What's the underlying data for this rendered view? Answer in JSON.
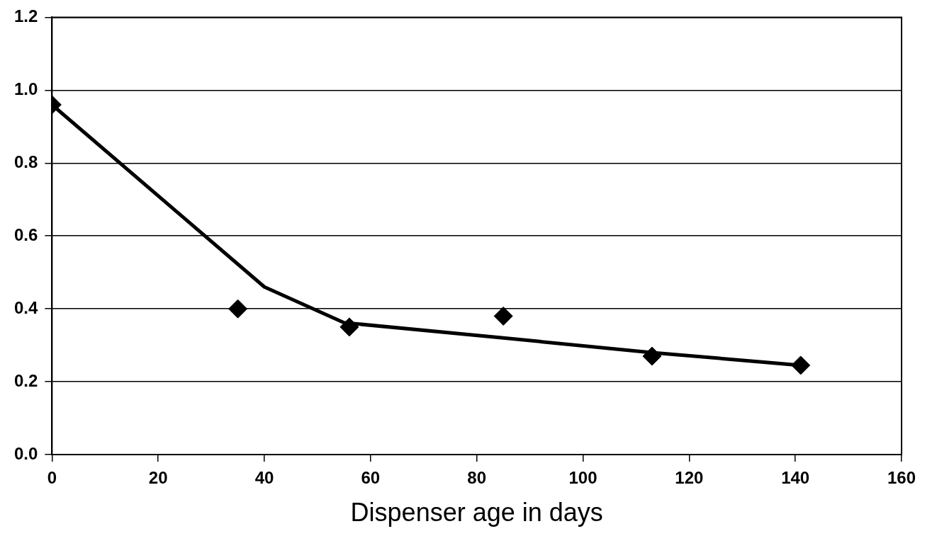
{
  "chart_data": {
    "type": "scatter",
    "xlabel": "Dispenser age in days",
    "xlim": [
      0,
      160
    ],
    "xticks": [
      0,
      20,
      40,
      60,
      80,
      100,
      120,
      140,
      160
    ],
    "ylim": [
      0,
      1.2
    ],
    "yticks": [
      {
        "value": 0,
        "label": "0.0"
      },
      {
        "value": 0.2,
        "label": "0.2"
      },
      {
        "value": 0.4,
        "label": "0.4"
      },
      {
        "value": 0.6,
        "label": "0.6"
      },
      {
        "value": 0.8,
        "label": "0.8"
      },
      {
        "value": 1,
        "label": "1.0"
      },
      {
        "value": 1.2,
        "label": "1.2"
      }
    ],
    "grid": "y",
    "legend": false,
    "marker": "diamond",
    "series": [
      {
        "color": "#000000",
        "x": [
          0,
          35,
          56,
          85,
          113,
          141
        ],
        "values": [
          0.96,
          0.4,
          0.35,
          0.38,
          0.27,
          0.245
        ]
      },
      {
        "type": "line",
        "color": "#000000",
        "marker": "none",
        "x": [
          0,
          40,
          55,
          85,
          113,
          141
        ],
        "values": [
          0.96,
          0.46,
          0.362,
          0.32,
          0.28,
          0.245
        ]
      }
    ]
  }
}
